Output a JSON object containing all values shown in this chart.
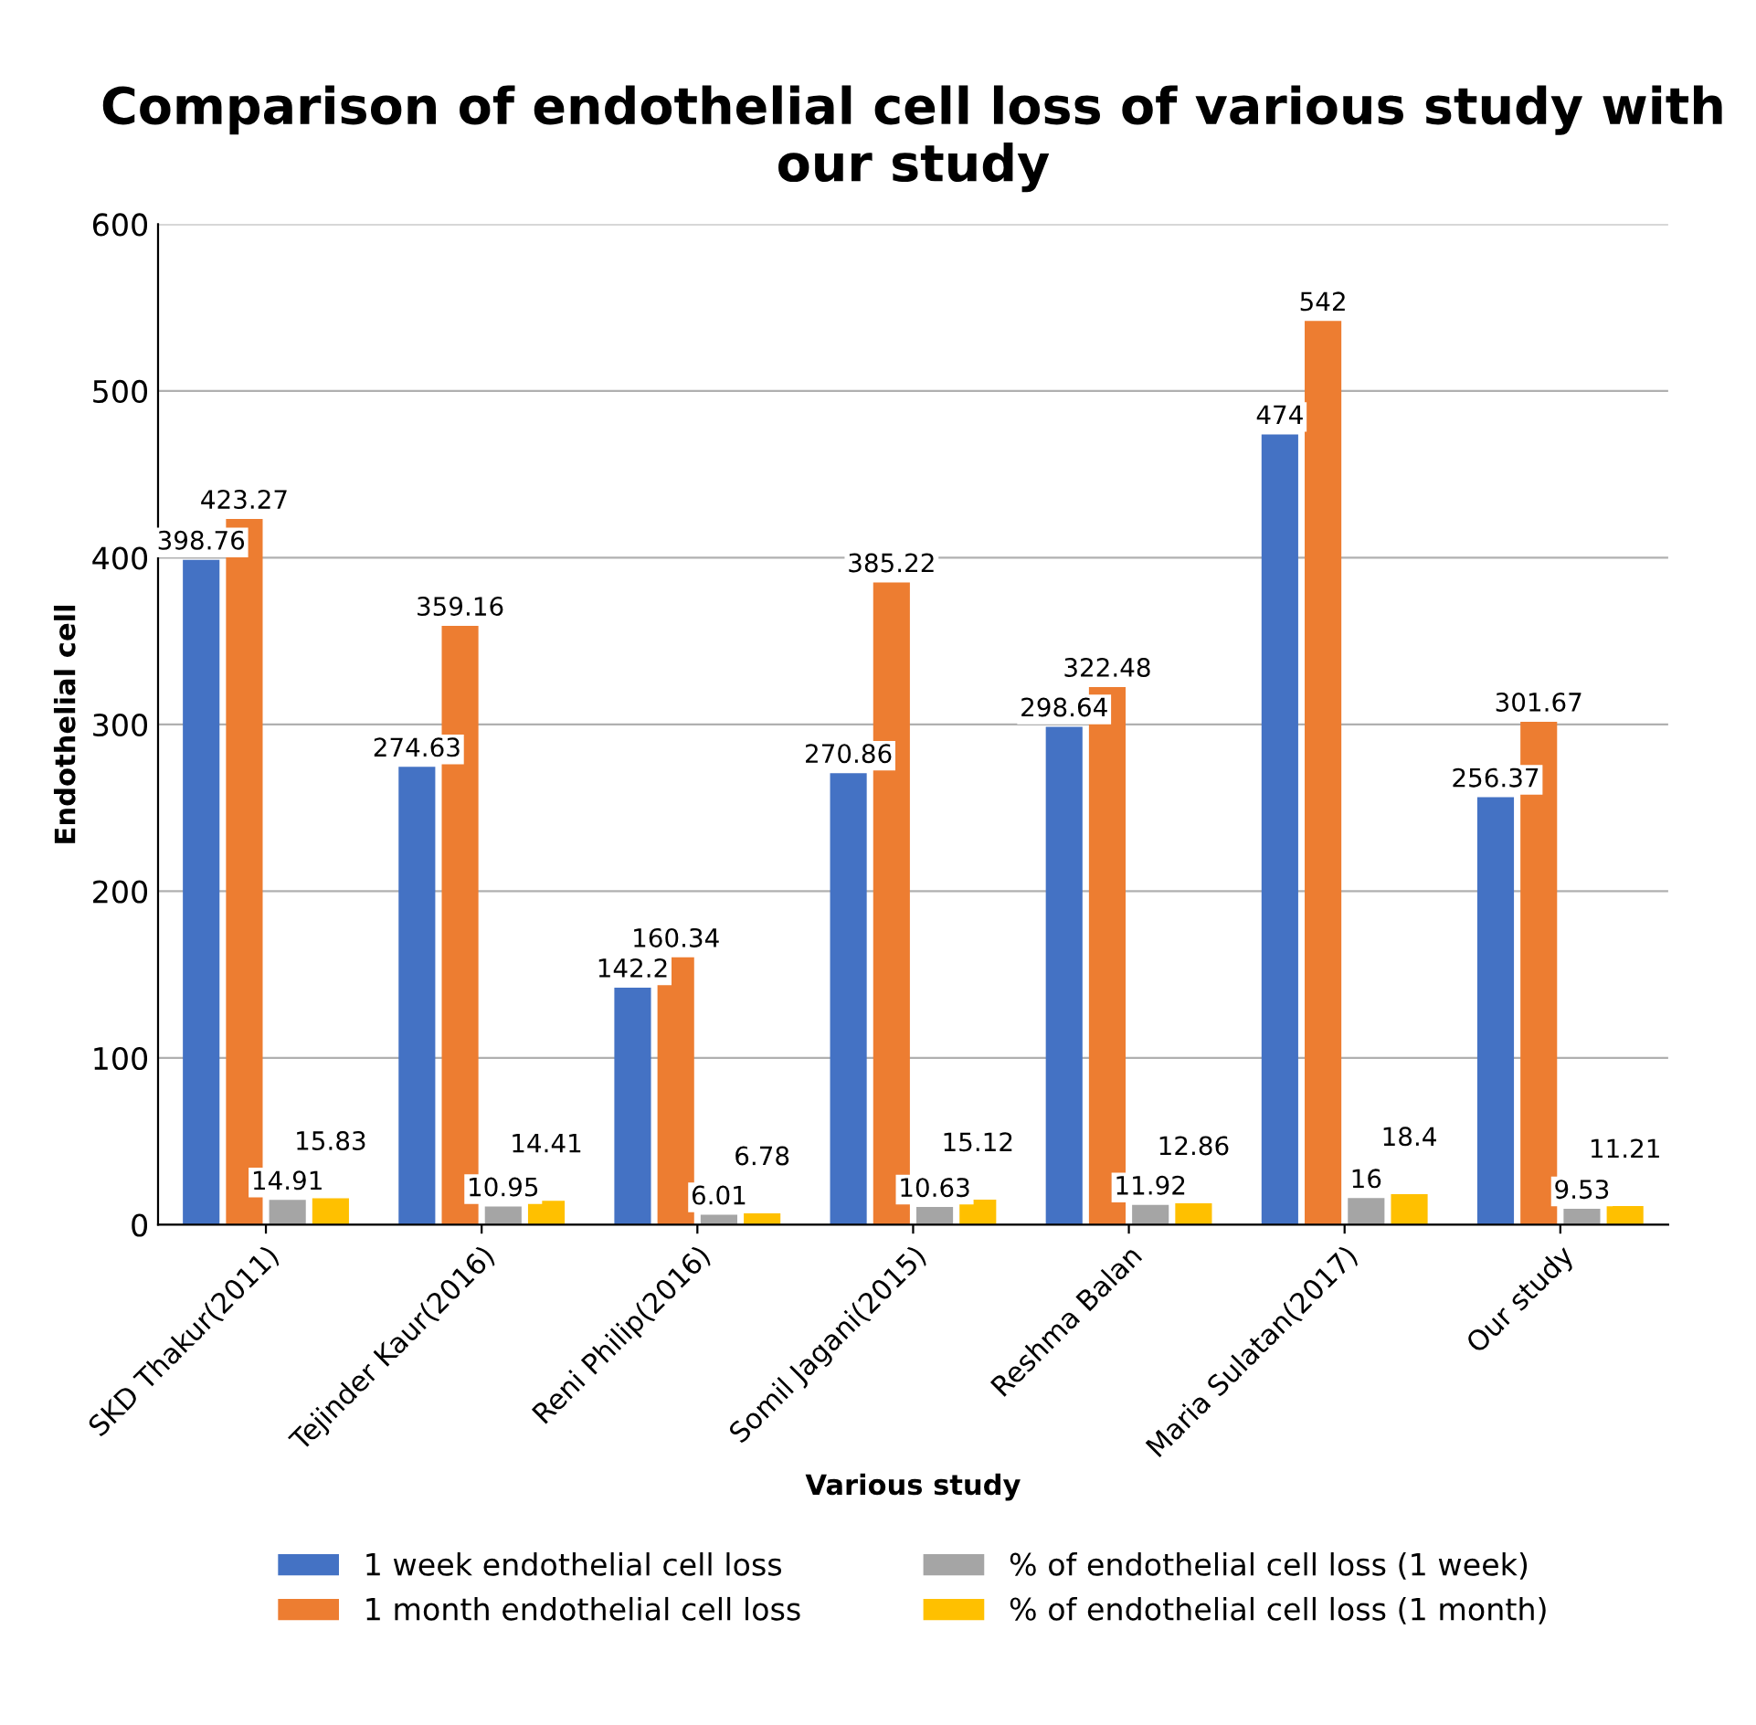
{
  "chart_data": {
    "type": "bar",
    "title": "Comparison of endothelial cell loss of various study with our study",
    "xlabel": "Various study",
    "ylabel": "Endothelial cell",
    "categories": [
      "SKD Thakur(2011)",
      "Tejinder Kaur(2016)",
      "Reni Philip(2016)",
      "Somil Jagani(2015)",
      "Reshma Balan",
      "Maria Sulatan(2017)",
      "Our study"
    ],
    "series": [
      {
        "name": "1 week endothelial cell loss",
        "color": "#4472c4",
        "values": [
          398.76,
          274.63,
          142.2,
          270.86,
          298.64,
          474,
          256.37
        ]
      },
      {
        "name": "1 month endothelial cell loss",
        "color": "#ed7d31",
        "values": [
          423.27,
          359.16,
          160.34,
          385.22,
          322.48,
          542,
          301.67
        ]
      },
      {
        "name": "% of endothelial cell loss (1 week)",
        "color": "#a5a5a5",
        "values": [
          14.91,
          10.95,
          6.01,
          10.63,
          11.92,
          16,
          9.53
        ]
      },
      {
        "name": "% of endothelial cell loss (1 month)",
        "color": "#ffc000",
        "values": [
          15.83,
          14.41,
          6.78,
          15.12,
          12.86,
          18.4,
          11.21
        ]
      }
    ],
    "ylim": [
      0,
      600
    ],
    "yticks": [
      0,
      100,
      200,
      300,
      400,
      500,
      600
    ],
    "grid": "y",
    "legend": "bottom",
    "data_labels": true
  }
}
